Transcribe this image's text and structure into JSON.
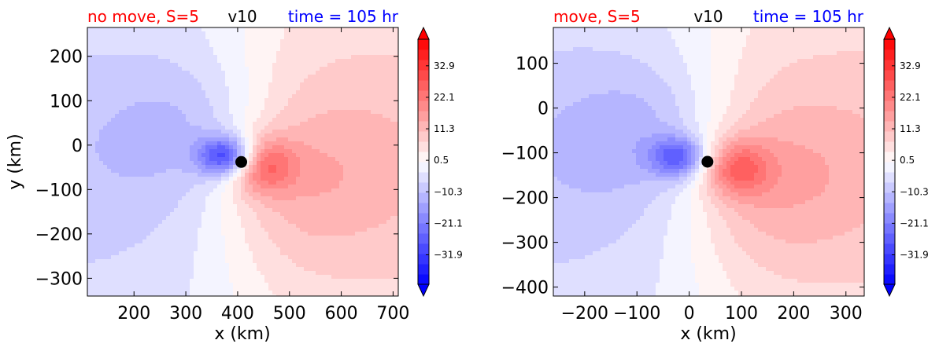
{
  "chart_data": [
    {
      "type": "heatmap",
      "title_left": "no move, S=5",
      "title_center": "v10",
      "title_right": "time = 105 hr",
      "title_left_color": "#ff0000",
      "title_center_color": "#000000",
      "title_right_color": "#0000ff",
      "xlabel": "x (km)",
      "ylabel": "y (km)",
      "xlim": [
        110,
        710
      ],
      "ylim": [
        -340,
        265
      ],
      "xticks": [
        200,
        300,
        400,
        500,
        600,
        700
      ],
      "yticks": [
        200,
        100,
        0,
        -100,
        -200,
        -300
      ],
      "xtick_labels": [
        "200",
        "300",
        "400",
        "500",
        "600",
        "700"
      ],
      "ytick_labels": [
        "200",
        "100",
        "0",
        "−100",
        "−200",
        "−300"
      ],
      "center_marker": {
        "x": 407,
        "y": -38
      },
      "field": {
        "negative_lobe": {
          "x": 380,
          "y": -25,
          "peak": -30
        },
        "positive_lobe": {
          "x": 445,
          "y": -45,
          "peak": 20
        }
      },
      "colorbar": {
        "cmap": "bwr",
        "min": -42,
        "max": 42,
        "tick_values": [
          32.9,
          22.1,
          11.3,
          0.5,
          -10.3,
          -21.1,
          -31.9
        ],
        "tick_labels": [
          "32.9",
          "22.1",
          "11.3",
          "0.5",
          "−10.3",
          "−21.1",
          "−31.9"
        ],
        "extend": "both"
      }
    },
    {
      "type": "heatmap",
      "title_left": "move, S=5",
      "title_center": "v10",
      "title_right": "time = 105 hr",
      "title_left_color": "#ff0000",
      "title_center_color": "#000000",
      "title_right_color": "#0000ff",
      "xlabel": "x (km)",
      "ylabel": "",
      "xlim": [
        -260,
        335
      ],
      "ylim": [
        -420,
        180
      ],
      "xticks": [
        -200,
        -100,
        0,
        100,
        200,
        300
      ],
      "yticks": [
        100,
        0,
        -100,
        -200,
        -300,
        -400
      ],
      "xtick_labels": [
        "−200",
        "−100",
        "0",
        "100",
        "200",
        "300"
      ],
      "ytick_labels": [
        "100",
        "0",
        "−100",
        "−200",
        "−300",
        "−400"
      ],
      "center_marker": {
        "x": 35,
        "y": -120
      },
      "field": {
        "negative_lobe": {
          "x": -20,
          "y": -110,
          "peak": -22
        },
        "positive_lobe": {
          "x": 90,
          "y": -135,
          "peak": 18
        }
      },
      "colorbar": {
        "cmap": "bwr",
        "min": -42,
        "max": 42,
        "tick_values": [
          32.9,
          22.1,
          11.3,
          0.5,
          -10.3,
          -21.1,
          -31.9
        ],
        "tick_labels": [
          "32.9",
          "22.1",
          "11.3",
          "0.5",
          "−10.3",
          "−21.1",
          "−31.9"
        ],
        "extend": "both"
      }
    }
  ]
}
